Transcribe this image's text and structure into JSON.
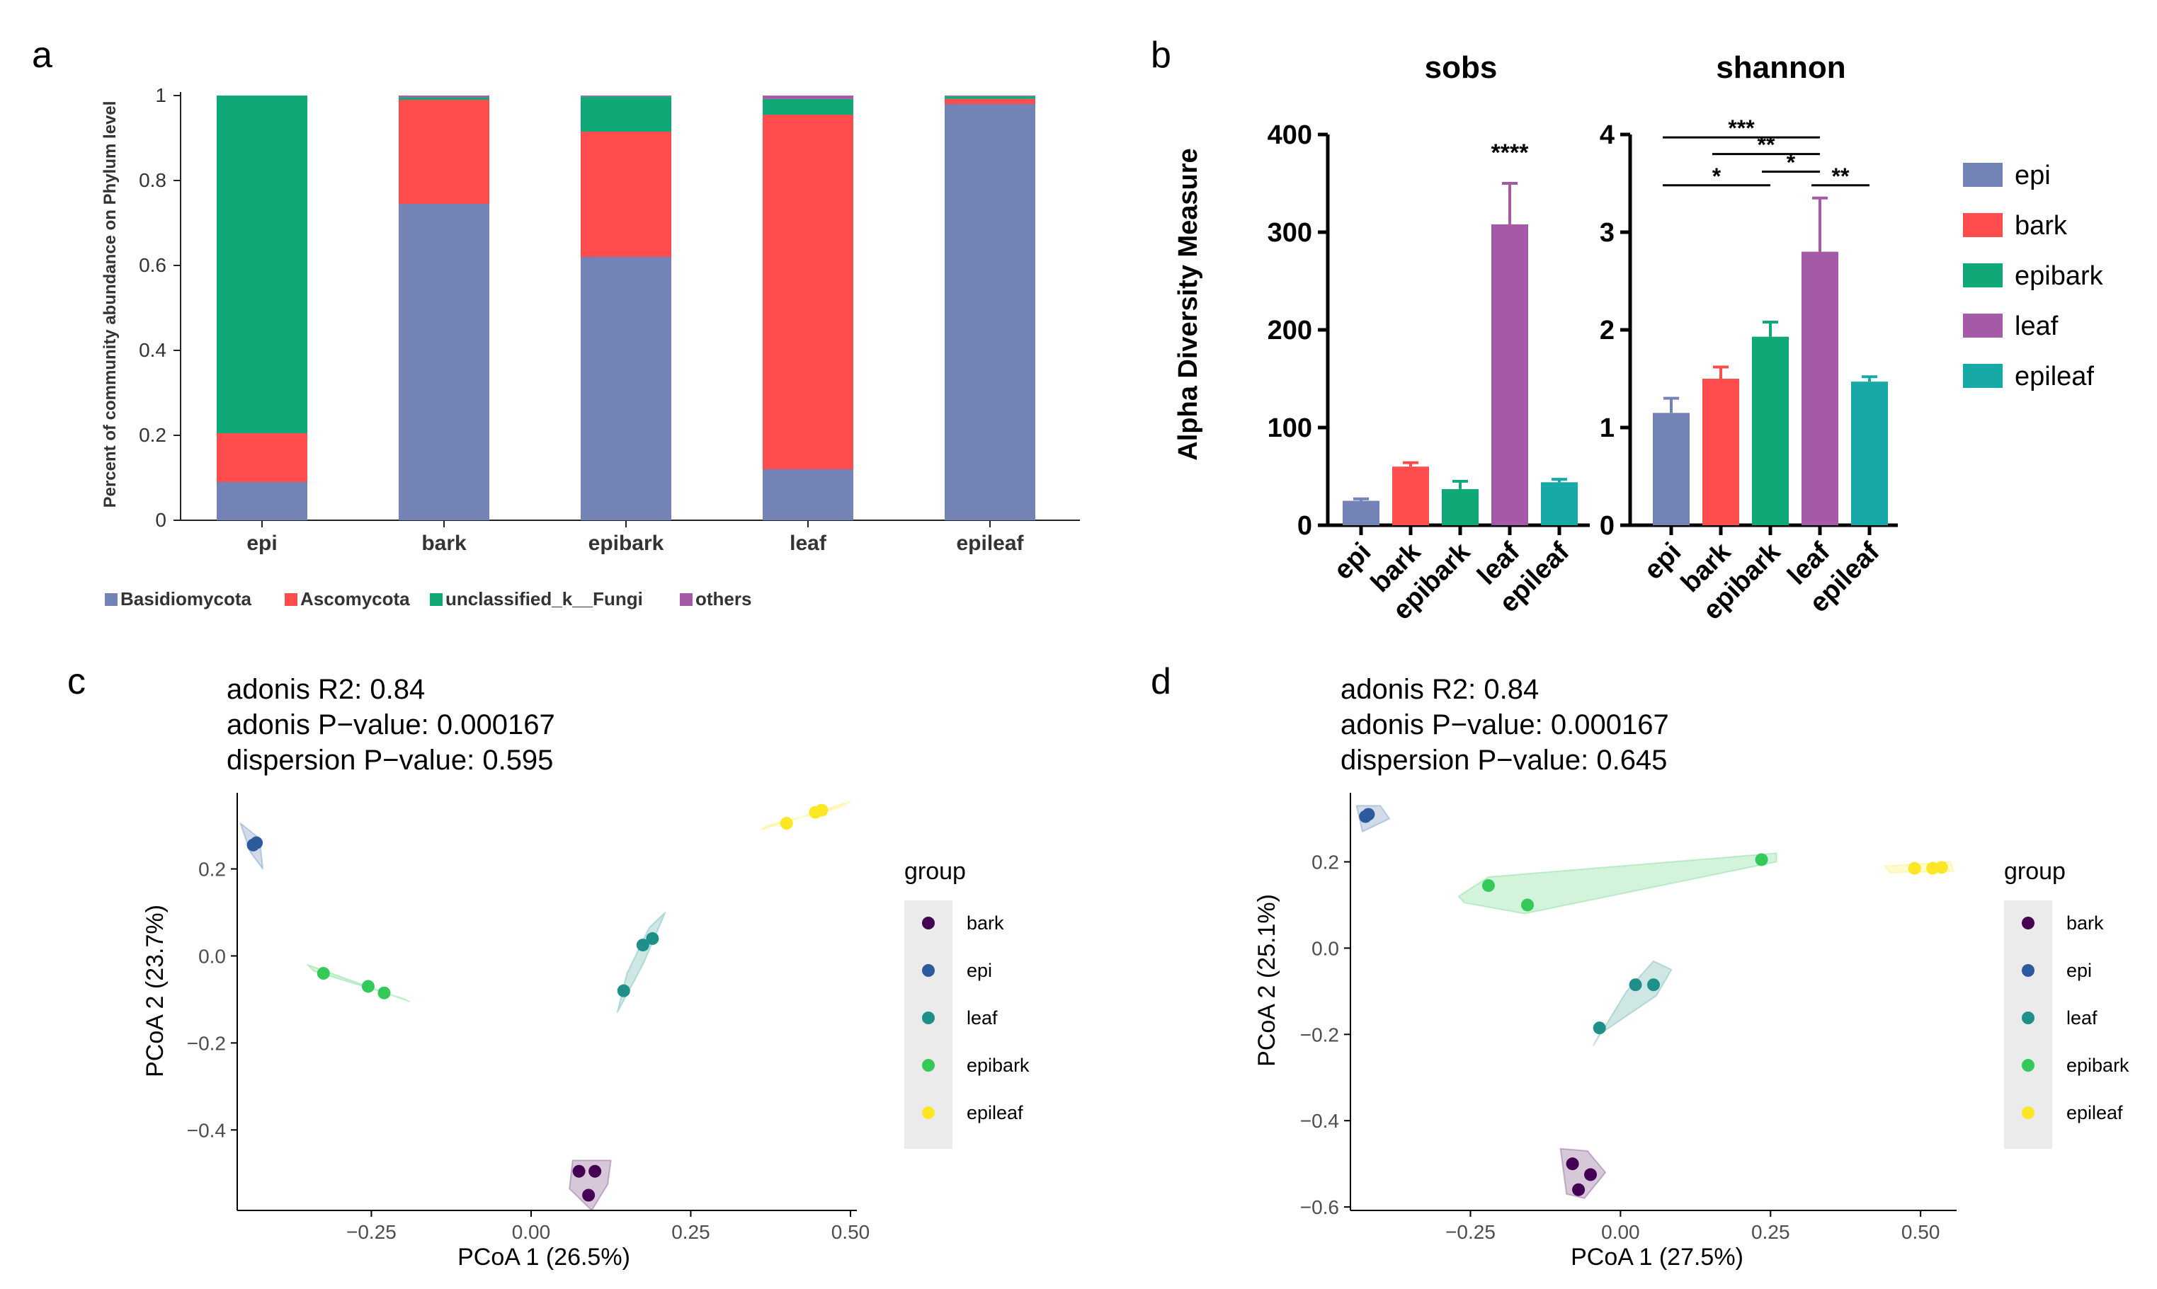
{
  "colors": {
    "basidiomycota": "#7383b5",
    "ascomycota": "#ff4d4d",
    "unclassified": "#10a877",
    "others": "#a45aa6",
    "epi": "#7383b5",
    "bark": "#ff4d4d",
    "epibark": "#10a877",
    "leaf": "#a45aa6",
    "epileaf": "#17a8a8",
    "pcoa_bark": "#440154",
    "pcoa_epi": "#2c5a9b",
    "pcoa_leaf": "#1e9089",
    "pcoa_epibark": "#35c95a",
    "pcoa_epileaf": "#fde725",
    "pcoa_legend_bg": "#ebebeb"
  },
  "chart_data": [
    {
      "panel": "a",
      "type": "bar",
      "stacked": true,
      "panel_label": "a",
      "ylabel": "Percent of community abundance on Phylum level",
      "categories": [
        "epi",
        "bark",
        "epibark",
        "leaf",
        "epileaf"
      ],
      "series": [
        {
          "name": "Basidiomycota",
          "values": [
            0.09,
            0.745,
            0.62,
            0.12,
            0.98
          ]
        },
        {
          "name": "Ascomycota",
          "values": [
            0.115,
            0.245,
            0.295,
            0.835,
            0.012
          ]
        },
        {
          "name": "unclassified_k__Fungi",
          "values": [
            0.795,
            0.006,
            0.083,
            0.037,
            0.006
          ]
        },
        {
          "name": "others",
          "values": [
            0.0,
            0.004,
            0.002,
            0.008,
            0.002
          ]
        }
      ],
      "ylim": [
        0,
        1
      ],
      "yticks": [
        "0",
        "0.2",
        "0.4",
        "0.6",
        "0.8",
        "1"
      ],
      "legend_position": "bottom"
    },
    {
      "panel": "b-sobs",
      "type": "bar",
      "panel_label": "b",
      "title": "sobs",
      "ylabel": "Alpha Diversity Measure",
      "categories": [
        "epi",
        "bark",
        "epibark",
        "leaf",
        "epileaf"
      ],
      "values": [
        25,
        60,
        37,
        308,
        44
      ],
      "errors": [
        2,
        4,
        8,
        42,
        3
      ],
      "ylim": [
        0,
        400
      ],
      "yticks": [
        "0",
        "100",
        "200",
        "300",
        "400"
      ],
      "annotation": "****"
    },
    {
      "panel": "b-shannon",
      "type": "bar",
      "title": "shannon",
      "categories": [
        "epi",
        "bark",
        "epibark",
        "leaf",
        "epileaf"
      ],
      "values": [
        1.15,
        1.5,
        1.93,
        2.8,
        1.47
      ],
      "errors": [
        0.15,
        0.12,
        0.15,
        0.55,
        0.05
      ],
      "ylim": [
        0,
        4
      ],
      "yticks": [
        "0",
        "1",
        "2",
        "3",
        "4"
      ],
      "significance": [
        {
          "from": "epi",
          "to": "leaf",
          "y": 3.97,
          "label": "***"
        },
        {
          "from": "bark",
          "to": "leaf",
          "y": 3.8,
          "label": "**"
        },
        {
          "from": "epi",
          "to": "epibark",
          "y": 3.48,
          "label": "*"
        },
        {
          "from": "epibark",
          "to": "leaf",
          "y": 3.62,
          "label": "*"
        },
        {
          "from": "leaf",
          "to": "epileaf",
          "y": 3.48,
          "label": "**"
        }
      ]
    },
    {
      "panel": "b-legend",
      "type": "legend",
      "entries": [
        "epi",
        "bark",
        "epibark",
        "leaf",
        "epileaf"
      ]
    },
    {
      "panel": "c",
      "type": "scatter",
      "panel_label": "c",
      "stats": [
        "adonis R2: 0.84",
        "adonis P−value: 0.000167",
        "dispersion P−value: 0.595"
      ],
      "xlabel": "PCoA 1 (26.5%)",
      "ylabel": "PCoA 2 (23.7%)",
      "xlim": [
        -0.46,
        0.51
      ],
      "ylim": [
        -0.585,
        0.375
      ],
      "xticks": [
        -0.25,
        0.0,
        0.25,
        0.5
      ],
      "xtick_labels": [
        "−0.25",
        "0.00",
        "0.25",
        "0.50"
      ],
      "yticks": [
        -0.4,
        -0.2,
        0.0,
        0.2
      ],
      "ytick_labels": [
        "−0.4",
        "−0.2",
        "0.0",
        "0.2"
      ],
      "legend_title": "group",
      "groups": [
        {
          "name": "bark",
          "points": [
            [
              0.075,
              -0.495
            ],
            [
              0.1,
              -0.495
            ],
            [
              0.09,
              -0.55
            ]
          ],
          "hull": [
            [
              0.065,
              -0.47
            ],
            [
              0.125,
              -0.47
            ],
            [
              0.12,
              -0.525
            ],
            [
              0.095,
              -0.585
            ],
            [
              0.06,
              -0.535
            ]
          ]
        },
        {
          "name": "epi",
          "points": [
            [
              -0.435,
              0.255
            ],
            [
              -0.43,
              0.26
            ]
          ],
          "hull": [
            [
              -0.455,
              0.305
            ],
            [
              -0.425,
              0.27
            ],
            [
              -0.42,
              0.2
            ],
            [
              -0.44,
              0.24
            ]
          ]
        },
        {
          "name": "leaf",
          "points": [
            [
              0.145,
              -0.08
            ],
            [
              0.175,
              0.025
            ],
            [
              0.19,
              0.04
            ]
          ],
          "hull": [
            [
              0.135,
              -0.13
            ],
            [
              0.175,
              -0.02
            ],
            [
              0.2,
              0.065
            ],
            [
              0.21,
              0.1
            ],
            [
              0.185,
              0.065
            ],
            [
              0.15,
              -0.04
            ]
          ]
        },
        {
          "name": "epibark",
          "points": [
            [
              -0.325,
              -0.04
            ],
            [
              -0.255,
              -0.07
            ],
            [
              -0.23,
              -0.085
            ]
          ],
          "hull": [
            [
              -0.35,
              -0.02
            ],
            [
              -0.19,
              -0.105
            ],
            [
              -0.2,
              -0.098
            ],
            [
              -0.34,
              -0.035
            ]
          ]
        },
        {
          "name": "epileaf",
          "points": [
            [
              0.4,
              0.305
            ],
            [
              0.445,
              0.33
            ],
            [
              0.455,
              0.335
            ]
          ],
          "hull": [
            [
              0.36,
              0.29
            ],
            [
              0.5,
              0.355
            ],
            [
              0.48,
              0.34
            ],
            [
              0.37,
              0.3
            ]
          ]
        }
      ]
    },
    {
      "panel": "d",
      "type": "scatter",
      "panel_label": "d",
      "stats": [
        "adonis R2: 0.84",
        "adonis P−value: 0.000167",
        "dispersion P−value: 0.645"
      ],
      "xlabel": "PCoA 1 (27.5%)",
      "ylabel": "PCoA 2 (25.1%)",
      "xlim": [
        -0.45,
        0.56
      ],
      "ylim": [
        -0.608,
        0.36
      ],
      "xticks": [
        -0.25,
        0.0,
        0.25,
        0.5
      ],
      "xtick_labels": [
        "−0.25",
        "0.00",
        "0.25",
        "0.50"
      ],
      "yticks": [
        -0.6,
        -0.4,
        -0.2,
        0.0,
        0.2
      ],
      "ytick_labels": [
        "−0.6",
        "−0.4",
        "−0.2",
        "0.0",
        "0.2"
      ],
      "legend_title": "group",
      "groups": [
        {
          "name": "bark",
          "points": [
            [
              -0.08,
              -0.5
            ],
            [
              -0.07,
              -0.56
            ],
            [
              -0.05,
              -0.525
            ]
          ],
          "hull": [
            [
              -0.1,
              -0.465
            ],
            [
              -0.055,
              -0.47
            ],
            [
              -0.025,
              -0.52
            ],
            [
              -0.06,
              -0.58
            ],
            [
              -0.09,
              -0.57
            ]
          ]
        },
        {
          "name": "epi",
          "points": [
            [
              -0.425,
              0.305
            ],
            [
              -0.42,
              0.31
            ]
          ],
          "hull": [
            [
              -0.44,
              0.33
            ],
            [
              -0.4,
              0.33
            ],
            [
              -0.385,
              0.3
            ],
            [
              -0.43,
              0.27
            ]
          ]
        },
        {
          "name": "leaf",
          "points": [
            [
              -0.035,
              -0.185
            ],
            [
              0.025,
              -0.085
            ],
            [
              0.055,
              -0.085
            ]
          ],
          "hull": [
            [
              -0.045,
              -0.225
            ],
            [
              0.01,
              -0.1
            ],
            [
              0.055,
              -0.03
            ],
            [
              0.085,
              -0.05
            ],
            [
              0.06,
              -0.11
            ],
            [
              -0.035,
              -0.2
            ]
          ]
        },
        {
          "name": "epibark",
          "points": [
            [
              -0.22,
              0.145
            ],
            [
              -0.155,
              0.1
            ],
            [
              0.235,
              0.205
            ]
          ],
          "hull": [
            [
              -0.27,
              0.12
            ],
            [
              -0.22,
              0.165
            ],
            [
              0.26,
              0.22
            ],
            [
              0.26,
              0.2
            ],
            [
              -0.16,
              0.08
            ],
            [
              -0.26,
              0.105
            ]
          ]
        },
        {
          "name": "epileaf",
          "points": [
            [
              0.49,
              0.185
            ],
            [
              0.52,
              0.185
            ],
            [
              0.535,
              0.187
            ]
          ],
          "hull": [
            [
              0.44,
              0.19
            ],
            [
              0.55,
              0.2
            ],
            [
              0.555,
              0.178
            ],
            [
              0.45,
              0.175
            ]
          ]
        }
      ]
    }
  ]
}
